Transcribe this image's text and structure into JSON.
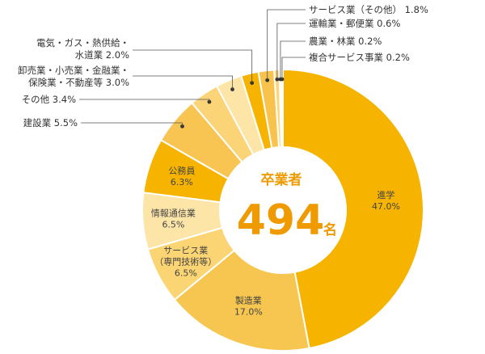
{
  "chart_data": {
    "type": "pie",
    "center": {
      "title": "卒業者",
      "total": "494",
      "unit": "名"
    },
    "slices": [
      {
        "label": "進学",
        "value": 47.0,
        "value_text": "47.0%",
        "color": "#f6b400",
        "inside": true
      },
      {
        "label": "製造業",
        "value": 17.0,
        "value_text": "17.0%",
        "color": "#f7c650",
        "inside": true
      },
      {
        "label": "サービス業\n（専門技術等）",
        "value": 6.5,
        "value_text": "6.5%",
        "color": "#fbd574",
        "inside": true
      },
      {
        "label": "情報通信業",
        "value": 6.5,
        "value_text": "6.5%",
        "color": "#fde5a8",
        "inside": true
      },
      {
        "label": "公務員",
        "value": 6.3,
        "value_text": "6.3%",
        "color": "#f6b400",
        "inside": true
      },
      {
        "label": "建設業",
        "value": 5.5,
        "value_text": "5.5%",
        "color": "#f8c552",
        "inside": false
      },
      {
        "label": "その他",
        "value": 3.4,
        "value_text": "3.4%",
        "color": "#fbd478",
        "inside": false
      },
      {
        "label": "卸売業・小売業・金融業・\n保険業・不動産等",
        "value": 3.0,
        "value_text": "3.0%",
        "color": "#fde5a8",
        "inside": false
      },
      {
        "label": "電気・ガス・熱供給・\n水道業",
        "value": 2.0,
        "value_text": "2.0%",
        "color": "#f6b400",
        "inside": false
      },
      {
        "label": "サービス業（その他）",
        "value": 1.8,
        "value_text": "1.8%",
        "color": "#f8c34d",
        "inside": false
      },
      {
        "label": "運輸業・郵便業",
        "value": 0.6,
        "value_text": "0.6%",
        "color": "#fcd677",
        "inside": false
      },
      {
        "label": "農業・林業",
        "value": 0.2,
        "value_text": "0.2%",
        "color": "#fde5a8",
        "inside": false
      },
      {
        "label": "複合サービス事業",
        "value": 0.2,
        "value_text": "0.2%",
        "color": "#f6b400",
        "inside": false
      }
    ]
  }
}
